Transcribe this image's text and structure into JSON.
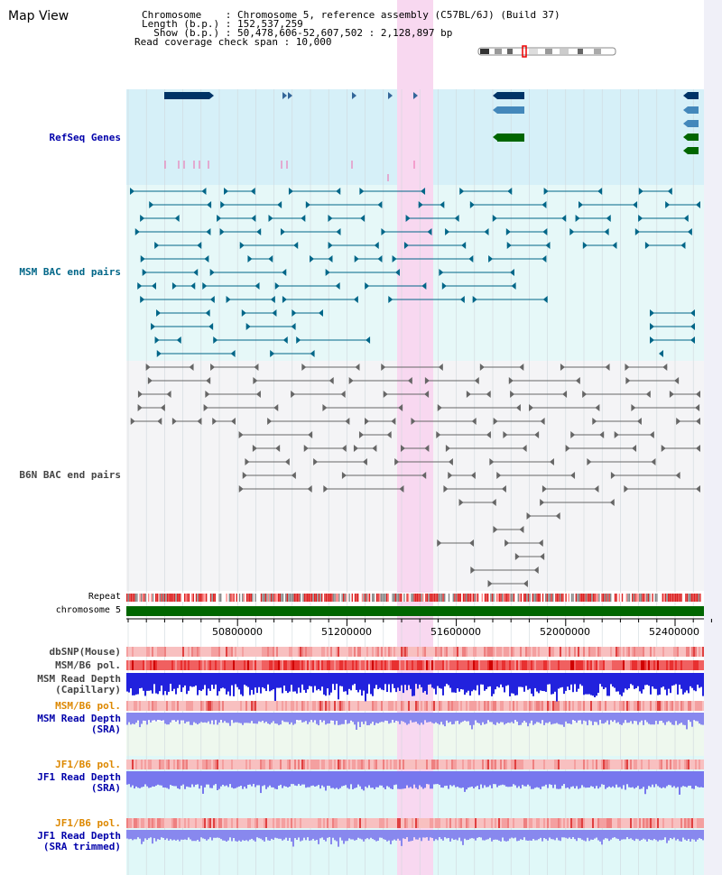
{
  "app": {
    "title": "Map View"
  },
  "header": {
    "chromosome": "Chromosome    : Chromosome 5, reference assembly (C57BL/6J) (Build 37)",
    "length": "Length (b.p.) : 152,537,259",
    "show": "  Show (b.p.) : 50,478,606-52,607,502 : 2,128,897 bp",
    "coverage": "Read coverage check span : 10,000"
  },
  "tracks": {
    "refseq": "RefSeq Genes",
    "msm_bac": "MSM BAC end pairs",
    "b6n_bac": "B6N BAC end pairs",
    "repeat": "Repeat",
    "chromosome": "chromosome 5",
    "dbsnp": "dbSNP(Mouse)",
    "msm_pol": "MSM/B6 pol.",
    "msm_depth_cap": "MSM Read Depth",
    "msm_depth_cap_sub": "(Capillary)",
    "msm_pol2": "MSM/B6 pol.",
    "msm_depth_sra": "MSM Read Depth",
    "msm_depth_sra_sub": "(SRA)",
    "jf1_pol": "JF1/B6 pol.",
    "jf1_depth": "JF1 Read Depth",
    "jf1_depth_sub": "(SRA)",
    "jf1_pol2": "JF1/B6 pol.",
    "jf1_depth_trim": "JF1 Read Depth",
    "jf1_depth_trim_sub": "(SRA trimmed)"
  },
  "axis_ticks": [
    "50800000",
    "51200000",
    "51600000",
    "52000000",
    "52400000"
  ],
  "colors": {
    "refseq_label": "#0000aa",
    "msm_label": "#006688",
    "b6n_label": "#444444",
    "pol_label": "#dd8800",
    "depth_label": "#0000aa",
    "highlight": "#f8d8f0",
    "chromosome_bar": "#006600"
  }
}
